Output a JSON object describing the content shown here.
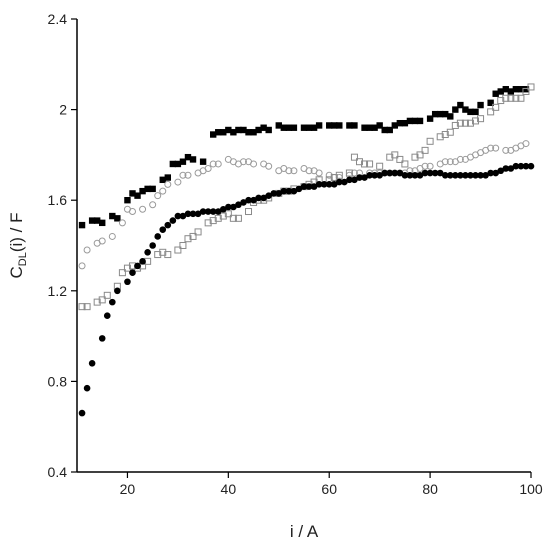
{
  "chart_data": {
    "type": "scatter",
    "title": "",
    "xlabel": "i / A",
    "ylabel": {
      "main": "C",
      "sub": "DL",
      "rest": "(i) / F"
    },
    "xlim": [
      10,
      100
    ],
    "ylim": [
      0.4,
      2.4
    ],
    "xticks": [
      20,
      40,
      60,
      80,
      100
    ],
    "yticks": [
      0.4,
      0.8,
      1.2,
      1.6,
      2.0,
      2.4
    ],
    "ytick_labels": [
      "0.4",
      "0.8",
      "1.2",
      "1.6",
      "2",
      "2.4"
    ],
    "grid": false,
    "series": [
      {
        "marker": "square-filled",
        "color": "#000000",
        "points": [
          [
            11,
            1.49
          ],
          [
            13,
            1.51
          ],
          [
            14,
            1.51
          ],
          [
            15,
            1.5
          ],
          [
            17,
            1.53
          ],
          [
            18,
            1.52
          ],
          [
            20,
            1.6
          ],
          [
            21,
            1.63
          ],
          [
            22,
            1.62
          ],
          [
            23,
            1.64
          ],
          [
            24,
            1.65
          ],
          [
            25,
            1.65
          ],
          [
            27,
            1.69
          ],
          [
            28,
            1.7
          ],
          [
            29,
            1.76
          ],
          [
            30,
            1.76
          ],
          [
            31,
            1.77
          ],
          [
            32,
            1.79
          ],
          [
            33,
            1.78
          ],
          [
            35,
            1.77
          ],
          [
            37,
            1.89
          ],
          [
            38,
            1.9
          ],
          [
            39,
            1.9
          ],
          [
            40,
            1.91
          ],
          [
            41,
            1.9
          ],
          [
            42,
            1.91
          ],
          [
            43,
            1.91
          ],
          [
            44,
            1.9
          ],
          [
            45,
            1.9
          ],
          [
            46,
            1.91
          ],
          [
            47,
            1.92
          ],
          [
            48,
            1.91
          ],
          [
            50,
            1.93
          ],
          [
            51,
            1.92
          ],
          [
            52,
            1.92
          ],
          [
            53,
            1.92
          ],
          [
            55,
            1.92
          ],
          [
            56,
            1.92
          ],
          [
            57,
            1.92
          ],
          [
            58,
            1.93
          ],
          [
            60,
            1.93
          ],
          [
            61,
            1.93
          ],
          [
            62,
            1.93
          ],
          [
            64,
            1.93
          ],
          [
            65,
            1.93
          ],
          [
            67,
            1.92
          ],
          [
            68,
            1.92
          ],
          [
            69,
            1.92
          ],
          [
            70,
            1.93
          ],
          [
            71,
            1.91
          ],
          [
            72,
            1.91
          ],
          [
            73,
            1.93
          ],
          [
            74,
            1.94
          ],
          [
            75,
            1.94
          ],
          [
            76,
            1.95
          ],
          [
            77,
            1.95
          ],
          [
            78,
            1.95
          ],
          [
            80,
            1.96
          ],
          [
            81,
            1.98
          ],
          [
            82,
            1.98
          ],
          [
            83,
            1.98
          ],
          [
            84,
            1.97
          ],
          [
            85,
            2.0
          ],
          [
            86,
            2.02
          ],
          [
            87,
            2.0
          ],
          [
            88,
            1.99
          ],
          [
            89,
            1.99
          ],
          [
            90,
            2.02
          ],
          [
            92,
            2.03
          ],
          [
            93,
            2.07
          ],
          [
            94,
            2.08
          ],
          [
            95,
            2.09
          ],
          [
            96,
            2.08
          ],
          [
            97,
            2.09
          ],
          [
            98,
            2.09
          ],
          [
            99,
            2.09
          ]
        ]
      },
      {
        "marker": "circle-open",
        "color": "#9a9a9a",
        "points": [
          [
            11,
            1.31
          ],
          [
            12,
            1.38
          ],
          [
            14,
            1.41
          ],
          [
            15,
            1.42
          ],
          [
            17,
            1.44
          ],
          [
            19,
            1.5
          ],
          [
            20,
            1.56
          ],
          [
            21,
            1.55
          ],
          [
            23,
            1.56
          ],
          [
            25,
            1.58
          ],
          [
            26,
            1.62
          ],
          [
            27,
            1.64
          ],
          [
            28,
            1.67
          ],
          [
            30,
            1.68
          ],
          [
            31,
            1.71
          ],
          [
            32,
            1.71
          ],
          [
            34,
            1.72
          ],
          [
            35,
            1.73
          ],
          [
            36,
            1.74
          ],
          [
            37,
            1.76
          ],
          [
            38,
            1.76
          ],
          [
            40,
            1.78
          ],
          [
            41,
            1.77
          ],
          [
            42,
            1.76
          ],
          [
            43,
            1.77
          ],
          [
            44,
            1.77
          ],
          [
            45,
            1.76
          ],
          [
            47,
            1.76
          ],
          [
            48,
            1.75
          ],
          [
            50,
            1.73
          ],
          [
            51,
            1.74
          ],
          [
            52,
            1.73
          ],
          [
            53,
            1.73
          ],
          [
            55,
            1.74
          ],
          [
            56,
            1.73
          ],
          [
            57,
            1.73
          ],
          [
            58,
            1.72
          ],
          [
            60,
            1.71
          ],
          [
            61,
            1.7
          ],
          [
            62,
            1.7
          ],
          [
            64,
            1.71
          ],
          [
            65,
            1.72
          ],
          [
            66,
            1.72
          ],
          [
            68,
            1.72
          ],
          [
            69,
            1.72
          ],
          [
            70,
            1.72
          ],
          [
            71,
            1.72
          ],
          [
            72,
            1.72
          ],
          [
            73,
            1.72
          ],
          [
            74,
            1.72
          ],
          [
            75,
            1.72
          ],
          [
            76,
            1.73
          ],
          [
            77,
            1.73
          ],
          [
            78,
            1.74
          ],
          [
            79,
            1.75
          ],
          [
            80,
            1.75
          ],
          [
            82,
            1.76
          ],
          [
            83,
            1.77
          ],
          [
            84,
            1.77
          ],
          [
            85,
            1.77
          ],
          [
            86,
            1.78
          ],
          [
            87,
            1.78
          ],
          [
            88,
            1.79
          ],
          [
            89,
            1.8
          ],
          [
            90,
            1.81
          ],
          [
            91,
            1.82
          ],
          [
            92,
            1.83
          ],
          [
            93,
            1.83
          ],
          [
            95,
            1.82
          ],
          [
            96,
            1.82
          ],
          [
            97,
            1.83
          ],
          [
            98,
            1.84
          ],
          [
            99,
            1.85
          ]
        ]
      },
      {
        "marker": "square-open",
        "color": "#8a8a8a",
        "points": [
          [
            11,
            1.13
          ],
          [
            12,
            1.13
          ],
          [
            14,
            1.15
          ],
          [
            15,
            1.16
          ],
          [
            16,
            1.18
          ],
          [
            18,
            1.22
          ],
          [
            19,
            1.28
          ],
          [
            20,
            1.3
          ],
          [
            21,
            1.31
          ],
          [
            22,
            1.3
          ],
          [
            23,
            1.31
          ],
          [
            24,
            1.33
          ],
          [
            26,
            1.36
          ],
          [
            27,
            1.37
          ],
          [
            28,
            1.36
          ],
          [
            30,
            1.38
          ],
          [
            31,
            1.4
          ],
          [
            32,
            1.43
          ],
          [
            33,
            1.44
          ],
          [
            34,
            1.46
          ],
          [
            36,
            1.5
          ],
          [
            37,
            1.51
          ],
          [
            38,
            1.52
          ],
          [
            39,
            1.53
          ],
          [
            40,
            1.54
          ],
          [
            41,
            1.52
          ],
          [
            42,
            1.52
          ],
          [
            44,
            1.55
          ],
          [
            45,
            1.59
          ],
          [
            46,
            1.6
          ],
          [
            47,
            1.6
          ],
          [
            48,
            1.61
          ],
          [
            50,
            1.63
          ],
          [
            51,
            1.64
          ],
          [
            52,
            1.64
          ],
          [
            53,
            1.65
          ],
          [
            55,
            1.66
          ],
          [
            56,
            1.67
          ],
          [
            57,
            1.68
          ],
          [
            58,
            1.69
          ],
          [
            60,
            1.69
          ],
          [
            61,
            1.7
          ],
          [
            62,
            1.71
          ],
          [
            64,
            1.72
          ],
          [
            65,
            1.79
          ],
          [
            66,
            1.77
          ],
          [
            67,
            1.76
          ],
          [
            68,
            1.76
          ],
          [
            70,
            1.75
          ],
          [
            72,
            1.79
          ],
          [
            73,
            1.8
          ],
          [
            74,
            1.78
          ],
          [
            75,
            1.76
          ],
          [
            77,
            1.79
          ],
          [
            78,
            1.8
          ],
          [
            79,
            1.82
          ],
          [
            80,
            1.86
          ],
          [
            82,
            1.88
          ],
          [
            83,
            1.89
          ],
          [
            84,
            1.9
          ],
          [
            85,
            1.93
          ],
          [
            86,
            1.94
          ],
          [
            87,
            1.94
          ],
          [
            88,
            1.94
          ],
          [
            89,
            1.95
          ],
          [
            90,
            1.96
          ],
          [
            92,
            1.99
          ],
          [
            93,
            2.01
          ],
          [
            94,
            2.04
          ],
          [
            95,
            2.05
          ],
          [
            96,
            2.05
          ],
          [
            97,
            2.05
          ],
          [
            98,
            2.05
          ],
          [
            99,
            2.08
          ],
          [
            100,
            2.1
          ]
        ]
      },
      {
        "marker": "circle-filled",
        "color": "#000000",
        "points": [
          [
            11,
            0.66
          ],
          [
            12,
            0.77
          ],
          [
            13,
            0.88
          ],
          [
            15,
            0.99
          ],
          [
            16,
            1.09
          ],
          [
            17,
            1.15
          ],
          [
            18,
            1.2
          ],
          [
            20,
            1.24
          ],
          [
            21,
            1.28
          ],
          [
            22,
            1.31
          ],
          [
            23,
            1.33
          ],
          [
            24,
            1.37
          ],
          [
            25,
            1.4
          ],
          [
            26,
            1.44
          ],
          [
            27,
            1.47
          ],
          [
            28,
            1.49
          ],
          [
            29,
            1.51
          ],
          [
            30,
            1.53
          ],
          [
            31,
            1.53
          ],
          [
            32,
            1.54
          ],
          [
            33,
            1.54
          ],
          [
            34,
            1.54
          ],
          [
            35,
            1.55
          ],
          [
            36,
            1.55
          ],
          [
            37,
            1.55
          ],
          [
            38,
            1.55
          ],
          [
            39,
            1.56
          ],
          [
            40,
            1.57
          ],
          [
            41,
            1.57
          ],
          [
            42,
            1.58
          ],
          [
            43,
            1.59
          ],
          [
            44,
            1.6
          ],
          [
            45,
            1.6
          ],
          [
            46,
            1.61
          ],
          [
            47,
            1.61
          ],
          [
            48,
            1.62
          ],
          [
            49,
            1.63
          ],
          [
            50,
            1.63
          ],
          [
            51,
            1.64
          ],
          [
            52,
            1.64
          ],
          [
            53,
            1.64
          ],
          [
            54,
            1.65
          ],
          [
            55,
            1.66
          ],
          [
            56,
            1.66
          ],
          [
            57,
            1.66
          ],
          [
            58,
            1.67
          ],
          [
            59,
            1.67
          ],
          [
            60,
            1.67
          ],
          [
            61,
            1.67
          ],
          [
            62,
            1.68
          ],
          [
            63,
            1.68
          ],
          [
            64,
            1.69
          ],
          [
            65,
            1.69
          ],
          [
            66,
            1.7
          ],
          [
            67,
            1.7
          ],
          [
            68,
            1.71
          ],
          [
            69,
            1.71
          ],
          [
            70,
            1.71
          ],
          [
            71,
            1.72
          ],
          [
            72,
            1.72
          ],
          [
            73,
            1.72
          ],
          [
            74,
            1.72
          ],
          [
            75,
            1.71
          ],
          [
            76,
            1.71
          ],
          [
            77,
            1.71
          ],
          [
            78,
            1.71
          ],
          [
            79,
            1.72
          ],
          [
            80,
            1.72
          ],
          [
            81,
            1.72
          ],
          [
            82,
            1.72
          ],
          [
            83,
            1.71
          ],
          [
            84,
            1.71
          ],
          [
            85,
            1.71
          ],
          [
            86,
            1.71
          ],
          [
            87,
            1.71
          ],
          [
            88,
            1.71
          ],
          [
            89,
            1.71
          ],
          [
            90,
            1.71
          ],
          [
            91,
            1.71
          ],
          [
            92,
            1.72
          ],
          [
            93,
            1.72
          ],
          [
            94,
            1.73
          ],
          [
            95,
            1.74
          ],
          [
            96,
            1.74
          ],
          [
            97,
            1.75
          ],
          [
            98,
            1.75
          ],
          [
            99,
            1.75
          ],
          [
            100,
            1.75
          ]
        ]
      }
    ]
  }
}
